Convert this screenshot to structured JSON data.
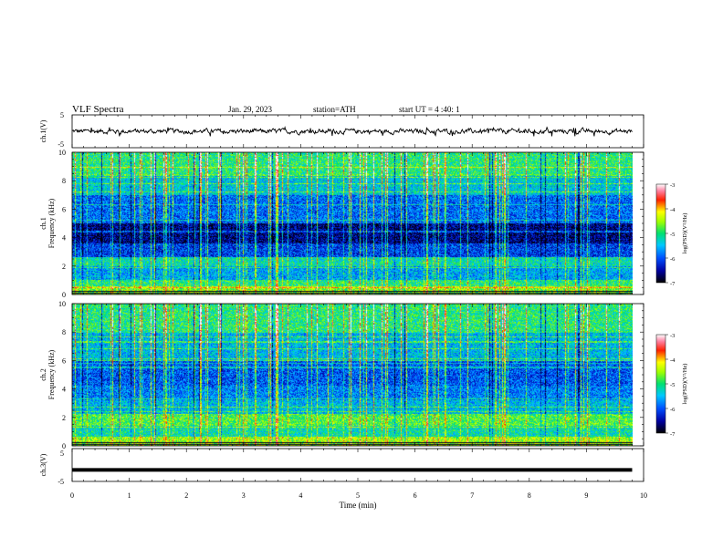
{
  "header": {
    "title": "VLF  Spectra",
    "date": "Jan. 29, 2023",
    "station": "station=ATH",
    "start": "start  UT  =   4  :40: 1"
  },
  "chart_data": [
    {
      "type": "line",
      "ylabel": "ch.1(V)",
      "ylim": [
        -5,
        5
      ],
      "yticks": [
        "5",
        "-5"
      ],
      "series": [
        {
          "approx_level_V": 0,
          "approx_range_V": [
            -1.5,
            1.2
          ]
        }
      ]
    },
    {
      "type": "heatmap",
      "ylabel": "ch.1\nFrequency  (kHz)",
      "ylabel_lines": [
        "ch.1",
        "Frequency  (kHz)"
      ],
      "ylim": [
        0,
        10
      ],
      "yticks": [
        "0",
        "2",
        "4",
        "6",
        "8",
        "10"
      ],
      "colorbar": {
        "label": "log(PSD)(V²/Hz)",
        "range": [
          -7,
          -3
        ],
        "ticks": [
          "-3",
          "-4",
          "-5",
          "-6",
          "-7"
        ]
      },
      "bands_kHz": [
        {
          "from": 0.0,
          "to": 0.5,
          "level": -4.6
        },
        {
          "from": 0.5,
          "to": 1.0,
          "level": -5.0
        },
        {
          "from": 1.0,
          "to": 2.0,
          "level": -5.6
        },
        {
          "from": 2.0,
          "to": 2.6,
          "level": -5.2
        },
        {
          "from": 2.6,
          "to": 3.6,
          "level": -6.1
        },
        {
          "from": 3.6,
          "to": 5.0,
          "level": -6.6
        },
        {
          "from": 5.0,
          "to": 7.0,
          "level": -5.9
        },
        {
          "from": 7.0,
          "to": 8.5,
          "level": -5.4
        },
        {
          "from": 8.5,
          "to": 10.0,
          "level": -5.0
        }
      ],
      "time_range_min": [
        0,
        9.8
      ]
    },
    {
      "type": "heatmap",
      "ylabel": "ch.2\nFrequency  (kHz)",
      "ylabel_lines": [
        "ch.2",
        "Frequency  (kHz)"
      ],
      "ylim": [
        0,
        10
      ],
      "yticks": [
        "0",
        "2",
        "4",
        "6",
        "8",
        "10"
      ],
      "colorbar": {
        "label": "log(PSD)(V²/Hz)",
        "range": [
          -7,
          -3
        ],
        "ticks": [
          "-3",
          "-4",
          "-5",
          "-6",
          "-7"
        ]
      },
      "bands_kHz": [
        {
          "from": 0.0,
          "to": 0.6,
          "level": -4.5
        },
        {
          "from": 0.6,
          "to": 1.4,
          "level": -5.2
        },
        {
          "from": 1.4,
          "to": 2.2,
          "level": -4.8
        },
        {
          "from": 2.2,
          "to": 3.2,
          "level": -5.5
        },
        {
          "from": 3.2,
          "to": 4.2,
          "level": -5.8
        },
        {
          "from": 4.2,
          "to": 6.0,
          "level": -6.0
        },
        {
          "from": 6.0,
          "to": 8.0,
          "level": -5.5
        },
        {
          "from": 8.0,
          "to": 10.0,
          "level": -5.0
        }
      ],
      "time_range_min": [
        0,
        9.8
      ]
    },
    {
      "type": "line",
      "ylabel": "ch.3(V)",
      "ylim": [
        -5,
        5
      ],
      "yticks": [
        "5",
        "-5"
      ],
      "series": [
        {
          "approx_level_V": -1.5
        }
      ]
    }
  ],
  "xaxis": {
    "label": "Time  (min)",
    "range": [
      0,
      10
    ],
    "ticks": [
      "0",
      "1",
      "2",
      "3",
      "4",
      "5",
      "6",
      "7",
      "8",
      "9",
      "10"
    ]
  }
}
